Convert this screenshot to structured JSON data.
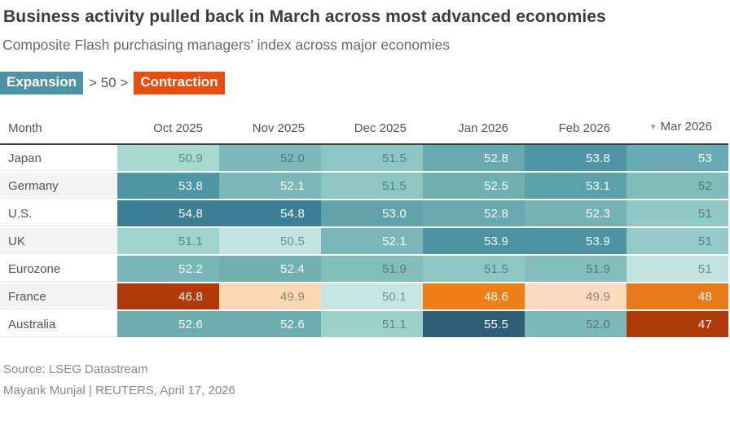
{
  "header": {
    "title": "Business activity pulled back in March across most advanced economies",
    "subtitle": "Composite Flash purchasing managers' index across major economies"
  },
  "legend": {
    "expansion_label": "Expansion",
    "middle_text": "> 50 >",
    "contraction_label": "Contraction",
    "expansion_color": "#4d93a6",
    "contraction_color": "#e84e0e"
  },
  "icons": {
    "sort_desc_icon": "▼"
  },
  "table": {
    "label_header": "Month",
    "columns": [
      {
        "label": "Oct 2025",
        "sorted": false
      },
      {
        "label": "Nov 2025",
        "sorted": false
      },
      {
        "label": "Dec 2025",
        "sorted": false
      },
      {
        "label": "Jan 2026",
        "sorted": false
      },
      {
        "label": "Feb 2026",
        "sorted": false
      },
      {
        "label": "Mar 2026",
        "sorted": true
      }
    ],
    "rows": [
      {
        "label": "Japan",
        "shaded": false,
        "cells": [
          {
            "v": "50.9",
            "bg": "#a7d9d2",
            "fg": "dim"
          },
          {
            "v": "52.0",
            "bg": "#7db9b8",
            "fg": "dim"
          },
          {
            "v": "51.5",
            "bg": "#8ec6c2",
            "fg": "dim"
          },
          {
            "v": "52.8",
            "bg": "#66a9ae",
            "fg": "light"
          },
          {
            "v": "53.8",
            "bg": "#4e96a5",
            "fg": "light"
          },
          {
            "v": "53",
            "bg": "#68abb2",
            "fg": "light"
          }
        ]
      },
      {
        "label": "Germany",
        "shaded": true,
        "cells": [
          {
            "v": "53.8",
            "bg": "#4e96a5",
            "fg": "light"
          },
          {
            "v": "52.1",
            "bg": "#7ab7b6",
            "fg": "light"
          },
          {
            "v": "51.5",
            "bg": "#8ec6c2",
            "fg": "dim"
          },
          {
            "v": "52.5",
            "bg": "#70b0b1",
            "fg": "light"
          },
          {
            "v": "53.1",
            "bg": "#5ba1a9",
            "fg": "light"
          },
          {
            "v": "52",
            "bg": "#7fbcba",
            "fg": "dim"
          }
        ]
      },
      {
        "label": "U.S.",
        "shaded": false,
        "cells": [
          {
            "v": "54.8",
            "bg": "#3c7f95",
            "fg": "light"
          },
          {
            "v": "54.8",
            "bg": "#3c7f95",
            "fg": "light"
          },
          {
            "v": "53.0",
            "bg": "#60a4aa",
            "fg": "light"
          },
          {
            "v": "52.8",
            "bg": "#66a9ae",
            "fg": "light"
          },
          {
            "v": "52.3",
            "bg": "#75b3b3",
            "fg": "light"
          },
          {
            "v": "51",
            "bg": "#90c8c3",
            "fg": "dim"
          }
        ]
      },
      {
        "label": "UK",
        "shaded": true,
        "cells": [
          {
            "v": "51.1",
            "bg": "#9ed3cc",
            "fg": "dim"
          },
          {
            "v": "50.5",
            "bg": "#c3e3de",
            "fg": "dim"
          },
          {
            "v": "52.1",
            "bg": "#7ab7b6",
            "fg": "light"
          },
          {
            "v": "53.9",
            "bg": "#4c94a3",
            "fg": "light"
          },
          {
            "v": "53.9",
            "bg": "#4c94a3",
            "fg": "light"
          },
          {
            "v": "51",
            "bg": "#95cbc6",
            "fg": "dim"
          }
        ]
      },
      {
        "label": "Eurozone",
        "shaded": false,
        "cells": [
          {
            "v": "52.2",
            "bg": "#78b5b5",
            "fg": "light"
          },
          {
            "v": "52.4",
            "bg": "#72b1b2",
            "fg": "light"
          },
          {
            "v": "51.9",
            "bg": "#83bebc",
            "fg": "dim"
          },
          {
            "v": "51.5",
            "bg": "#8ec6c2",
            "fg": "dim"
          },
          {
            "v": "51.9",
            "bg": "#83bebc",
            "fg": "dim"
          },
          {
            "v": "51",
            "bg": "#c2e4de",
            "fg": "dim"
          }
        ]
      },
      {
        "label": "France",
        "shaded": true,
        "cells": [
          {
            "v": "46.8",
            "bg": "#b13a0b",
            "fg": "light"
          },
          {
            "v": "49.9",
            "bg": "#fbd8b2",
            "fg": "dim"
          },
          {
            "v": "50.1",
            "bg": "#c8e6e1",
            "fg": "dim"
          },
          {
            "v": "48.6",
            "bg": "#ee7e17",
            "fg": "light"
          },
          {
            "v": "49.9",
            "bg": "#fdd9bd",
            "fg": "dim"
          },
          {
            "v": "48",
            "bg": "#e87a1a",
            "fg": "light"
          }
        ]
      },
      {
        "label": "Australia",
        "shaded": false,
        "cells": [
          {
            "v": "52.6",
            "bg": "#6dadb0",
            "fg": "light"
          },
          {
            "v": "52.6",
            "bg": "#6dadb0",
            "fg": "light"
          },
          {
            "v": "51.1",
            "bg": "#9dd2cb",
            "fg": "dim"
          },
          {
            "v": "55.5",
            "bg": "#2e5d76",
            "fg": "light"
          },
          {
            "v": "52.0",
            "bg": "#7db9b8",
            "fg": "dim"
          },
          {
            "v": "47",
            "bg": "#ae3a06",
            "fg": "light"
          }
        ]
      }
    ]
  },
  "footer": {
    "source": "Source: LSEG Datastream",
    "byline": "Mayank Munjal | REUTERS, April 17, 2026"
  },
  "chart_data": {
    "type": "heatmap",
    "title": "Business activity pulled back in March across most advanced economies",
    "subtitle": "Composite Flash purchasing managers' index across major economies",
    "legend": {
      "expansion": "> 50",
      "contraction": "< 50",
      "expansion_color": "#4d93a6",
      "contraction_color": "#e84e0e"
    },
    "categories": [
      "Oct 2025",
      "Nov 2025",
      "Dec 2025",
      "Jan 2026",
      "Feb 2026",
      "Mar 2026"
    ],
    "sorted_by": "Mar 2026",
    "series": [
      {
        "name": "Japan",
        "values": [
          50.9,
          52.0,
          51.5,
          52.8,
          53.8,
          53
        ]
      },
      {
        "name": "Germany",
        "values": [
          53.8,
          52.1,
          51.5,
          52.5,
          53.1,
          52
        ]
      },
      {
        "name": "U.S.",
        "values": [
          54.8,
          54.8,
          53.0,
          52.8,
          52.3,
          51
        ]
      },
      {
        "name": "UK",
        "values": [
          51.1,
          50.5,
          52.1,
          53.9,
          53.9,
          51
        ]
      },
      {
        "name": "Eurozone",
        "values": [
          52.2,
          52.4,
          51.9,
          51.5,
          51.9,
          51
        ]
      },
      {
        "name": "France",
        "values": [
          46.8,
          49.9,
          50.1,
          48.6,
          49.9,
          48
        ]
      },
      {
        "name": "Australia",
        "values": [
          52.6,
          52.6,
          51.1,
          55.5,
          52.0,
          47
        ]
      }
    ]
  }
}
